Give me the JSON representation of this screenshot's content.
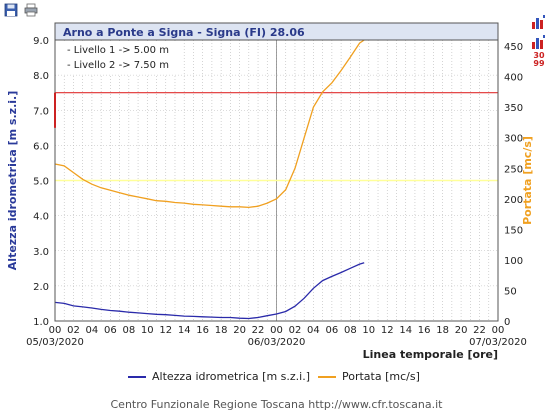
{
  "toolbar": {
    "save_icon": "floppy-disk-icon",
    "print_icon": "printer-icon"
  },
  "side_icons": {
    "chart_icon_a": "bar-chart-icon",
    "chart_icon_b": "bar-chart-icon",
    "calendar_label": "30 99"
  },
  "footer": "Centro Funzionale Regione Toscana http://www.cfr.toscana.it",
  "chart_data": {
    "type": "line",
    "title": "Arno a Ponte a Signa - Signa (FI) 28.06",
    "annotations": [
      "- Livello 1 -> 5.00 m",
      "- Livello 2 -> 7.50 m"
    ],
    "xlabel": "Linea temporale [ore]",
    "ylabel_left": "Altezza idrometrica [m s.z.i.]",
    "ylabel_right": "Portata [mc/s]",
    "ylim_left": [
      1.0,
      9.0
    ],
    "ylim_right": [
      0,
      460
    ],
    "left_ticks": [
      "1.0",
      "2.0",
      "3.0",
      "4.0",
      "5.0",
      "6.0",
      "7.0",
      "8.0",
      "9.0"
    ],
    "right_ticks": [
      "0",
      "50",
      "100",
      "150",
      "200",
      "250",
      "300",
      "350",
      "400",
      "450"
    ],
    "x_tick_labels": [
      "00",
      "02",
      "04",
      "06",
      "08",
      "10",
      "12",
      "14",
      "16",
      "18",
      "20",
      "22",
      "00",
      "02",
      "04",
      "06",
      "08",
      "10",
      "12",
      "14",
      "16",
      "18",
      "20",
      "22",
      "00"
    ],
    "date_labels": [
      {
        "hour": 0,
        "text": "05/03/2020"
      },
      {
        "hour": 24,
        "text": "06/03/2020"
      },
      {
        "hour": 48,
        "text": "07/03/2020"
      }
    ],
    "threshold_lines": [
      {
        "value": 5.0,
        "color": "#ffff99"
      },
      {
        "value": 7.5,
        "color": "#e03030"
      }
    ],
    "grid": true,
    "series": [
      {
        "name": "Altezza idrometrica [m s.z.i.]",
        "axis": "left",
        "color": "#2a2aaa",
        "points": [
          [
            0,
            1.53
          ],
          [
            1,
            1.5
          ],
          [
            2,
            1.43
          ],
          [
            3,
            1.4
          ],
          [
            4,
            1.37
          ],
          [
            5,
            1.33
          ],
          [
            6,
            1.3
          ],
          [
            7,
            1.28
          ],
          [
            8,
            1.25
          ],
          [
            9,
            1.23
          ],
          [
            10,
            1.21
          ],
          [
            11,
            1.19
          ],
          [
            12,
            1.18
          ],
          [
            13,
            1.16
          ],
          [
            14,
            1.14
          ],
          [
            15,
            1.13
          ],
          [
            16,
            1.12
          ],
          [
            17,
            1.11
          ],
          [
            18,
            1.1
          ],
          [
            19,
            1.1
          ],
          [
            20,
            1.08
          ],
          [
            21,
            1.07
          ],
          [
            22,
            1.1
          ],
          [
            23,
            1.15
          ],
          [
            24,
            1.2
          ],
          [
            25,
            1.27
          ],
          [
            26,
            1.42
          ],
          [
            27,
            1.65
          ],
          [
            28,
            1.93
          ],
          [
            29,
            2.15
          ],
          [
            30,
            2.27
          ],
          [
            31,
            2.38
          ],
          [
            32,
            2.5
          ],
          [
            33,
            2.62
          ],
          [
            33.5,
            2.66
          ]
        ]
      },
      {
        "name": "Portata [mc/s]",
        "axis": "right",
        "color": "#f0a020",
        "points": [
          [
            0,
            257
          ],
          [
            1,
            254
          ],
          [
            2,
            243
          ],
          [
            3,
            232
          ],
          [
            4,
            224
          ],
          [
            5,
            218
          ],
          [
            6,
            214
          ],
          [
            7,
            210
          ],
          [
            8,
            206
          ],
          [
            9,
            203
          ],
          [
            10,
            200
          ],
          [
            11,
            197
          ],
          [
            12,
            196
          ],
          [
            13,
            194
          ],
          [
            14,
            193
          ],
          [
            15,
            191
          ],
          [
            16,
            190
          ],
          [
            17,
            189
          ],
          [
            18,
            188
          ],
          [
            19,
            187
          ],
          [
            20,
            187
          ],
          [
            21,
            186
          ],
          [
            22,
            188
          ],
          [
            23,
            193
          ],
          [
            24,
            200
          ],
          [
            25,
            215
          ],
          [
            26,
            250
          ],
          [
            27,
            300
          ],
          [
            28,
            350
          ],
          [
            29,
            375
          ],
          [
            30,
            390
          ],
          [
            31,
            410
          ],
          [
            32,
            432
          ],
          [
            33,
            455
          ],
          [
            33.5,
            460
          ]
        ]
      }
    ]
  }
}
